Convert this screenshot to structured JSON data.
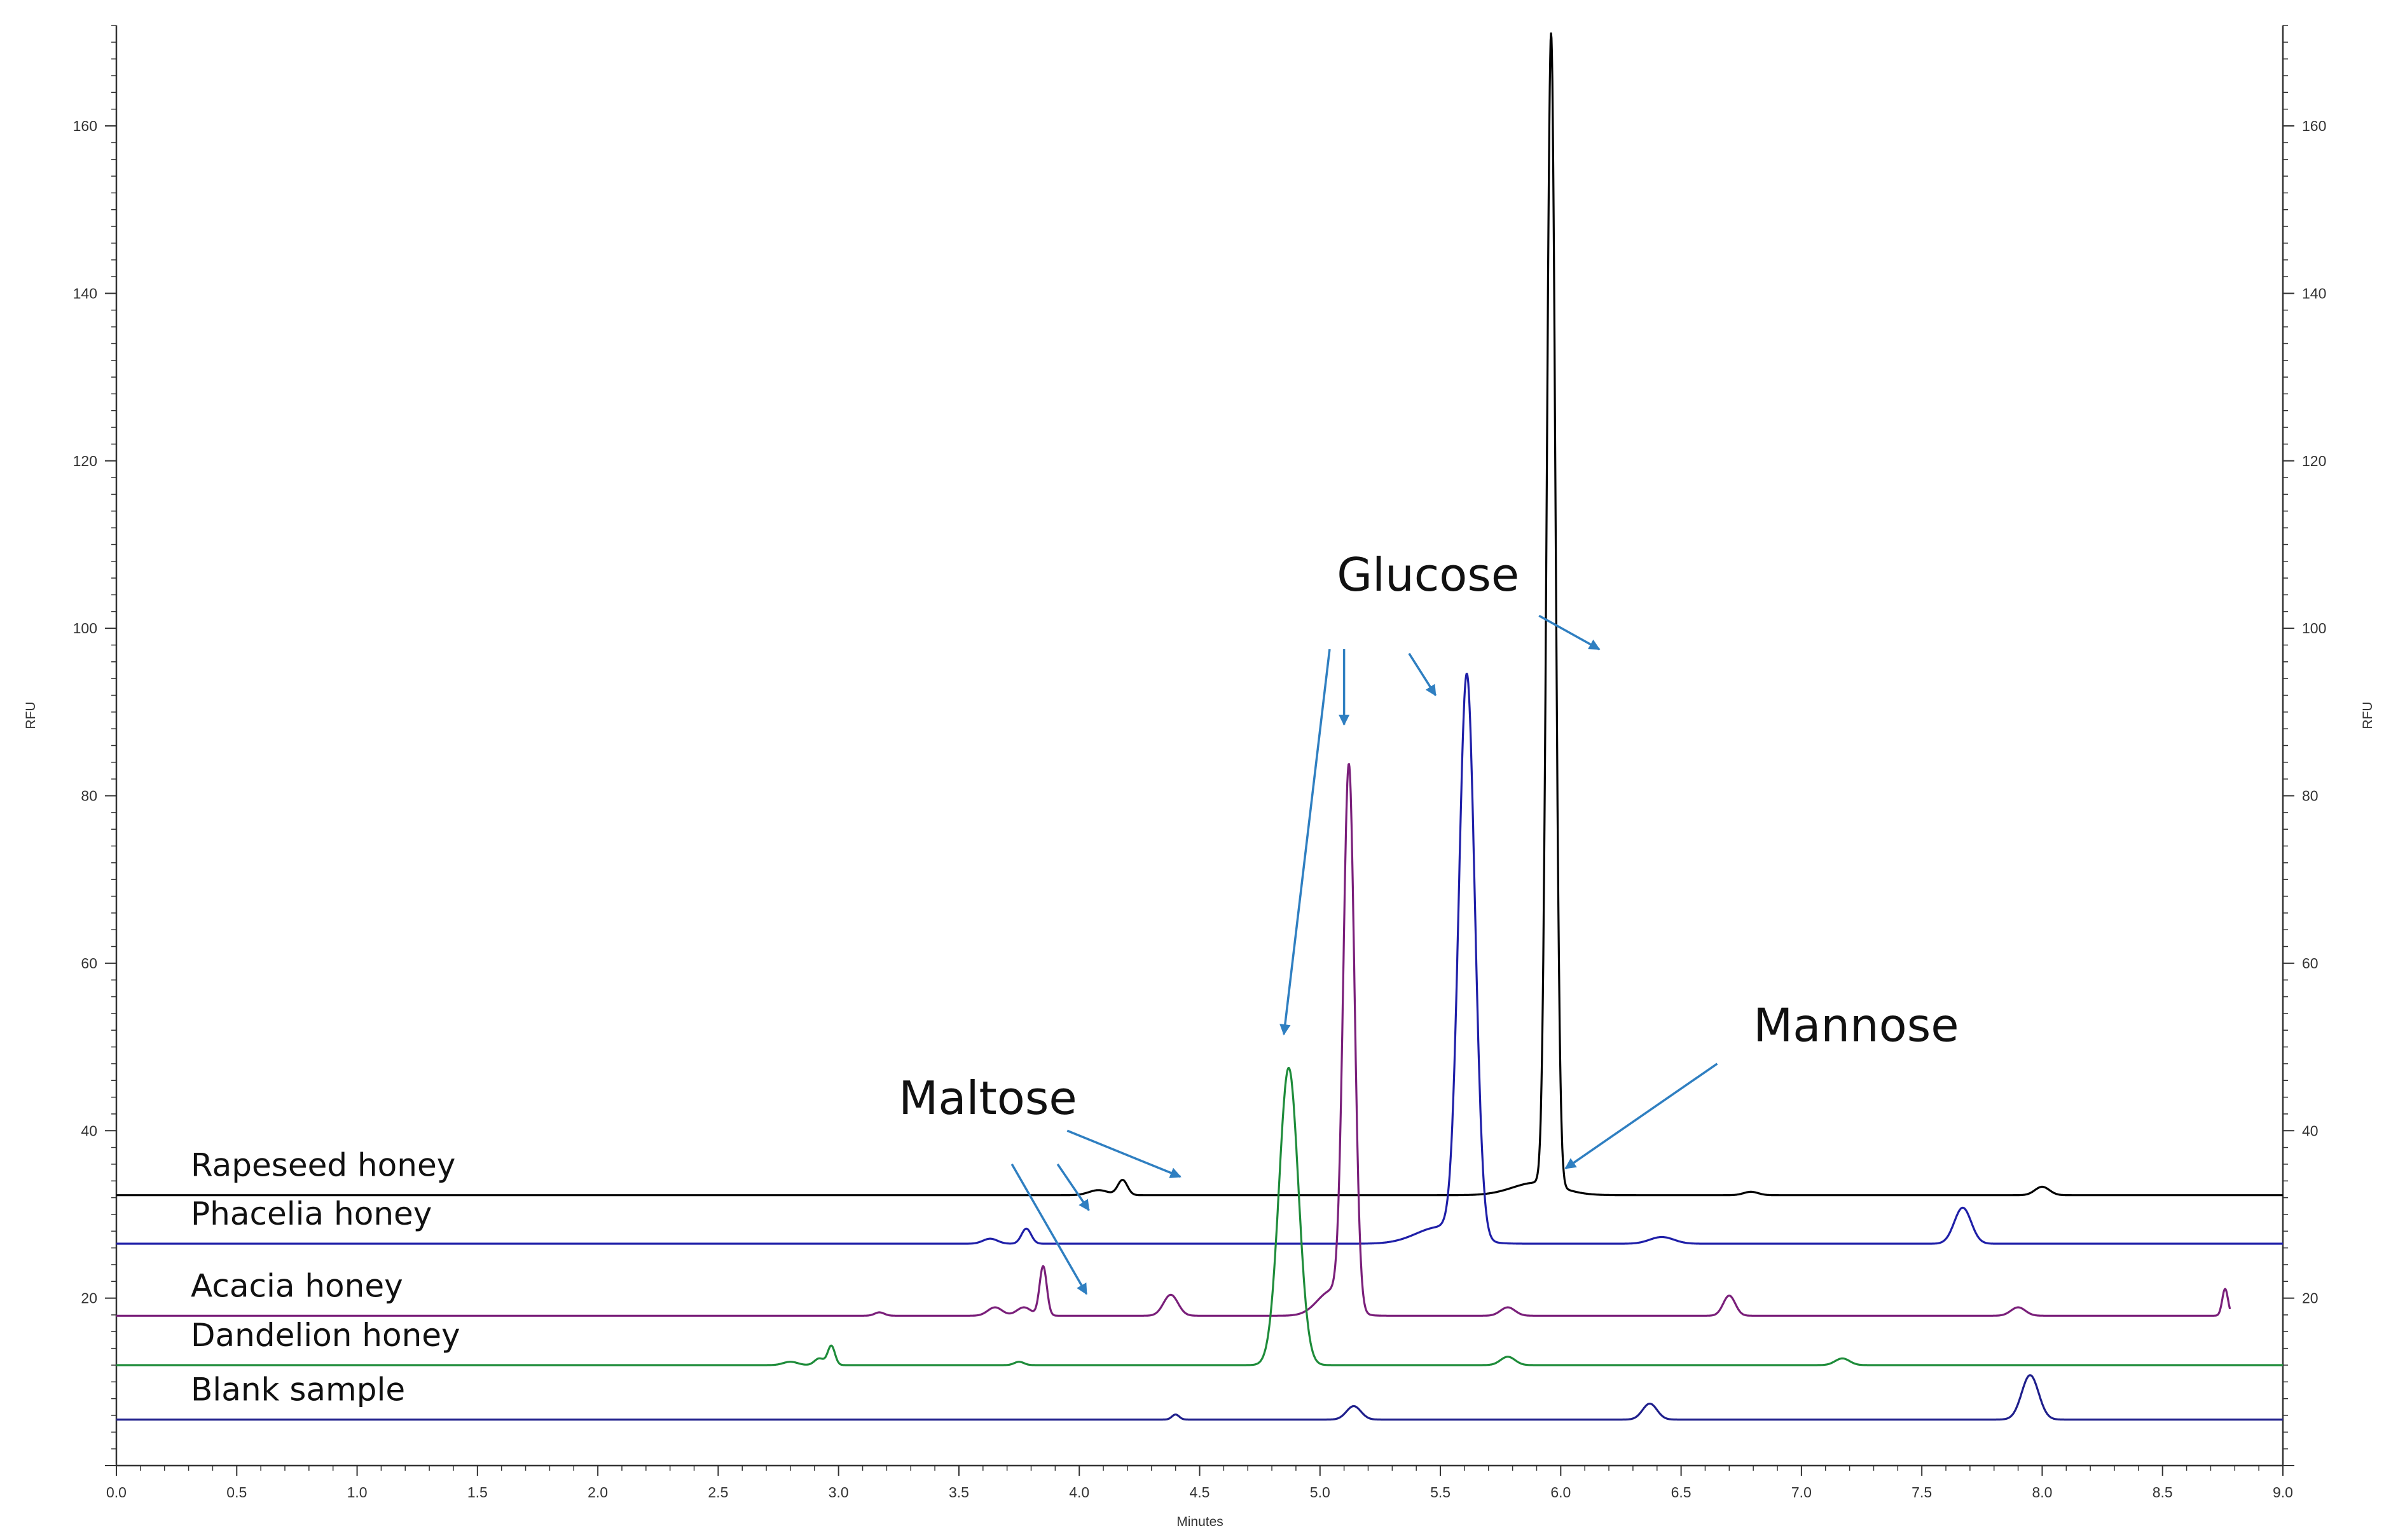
{
  "chart_data": {
    "type": "line",
    "xlabel": "Minutes",
    "ylabel": "RFU",
    "xlim": [
      0,
      9
    ],
    "ylim": [
      0,
      172
    ],
    "x_ticks": [
      "0.0",
      "0.5",
      "1.0",
      "1.5",
      "2.0",
      "2.5",
      "3.0",
      "3.5",
      "4.0",
      "4.5",
      "5.0",
      "5.5",
      "6.0",
      "6.5",
      "7.0",
      "7.5",
      "8.0",
      "8.5",
      "9.0"
    ],
    "y_ticks": [
      "20",
      "40",
      "60",
      "80",
      "100",
      "120",
      "140",
      "160"
    ],
    "x_tick_values": [
      0,
      0.5,
      1,
      1.5,
      2,
      2.5,
      3,
      3.5,
      4,
      4.5,
      5,
      5.5,
      6,
      6.5,
      7,
      7.5,
      8,
      8.5,
      9
    ],
    "y_tick_values": [
      20,
      40,
      60,
      80,
      100,
      120,
      140,
      160
    ],
    "grid": false,
    "secondary_y_axis": true,
    "series": [
      {
        "name": "Rapeseed honey",
        "color": "#000000",
        "baseline": 32.3,
        "x_end": 9.0,
        "peaks": [
          {
            "x": 4.18,
            "height": 1.8,
            "width": 0.02
          },
          {
            "x": 4.08,
            "height": 0.6,
            "width": 0.04
          },
          {
            "x": 5.9,
            "height": 1.5,
            "width": 0.1
          },
          {
            "x": 5.96,
            "height": 137.5,
            "width": 0.018
          },
          {
            "x": 6.79,
            "height": 0.4,
            "width": 0.03
          },
          {
            "x": 8.0,
            "height": 1.0,
            "width": 0.03
          }
        ]
      },
      {
        "name": "Phacelia honey",
        "color": "#1f1fa8",
        "baseline": 26.5,
        "x_end": 9.0,
        "peaks": [
          {
            "x": 3.63,
            "height": 0.6,
            "width": 0.03
          },
          {
            "x": 3.78,
            "height": 1.8,
            "width": 0.02
          },
          {
            "x": 5.61,
            "height": 67.0,
            "width": 0.033
          },
          {
            "x": 5.5,
            "height": 2.0,
            "width": 0.1
          },
          {
            "x": 6.42,
            "height": 0.8,
            "width": 0.05
          },
          {
            "x": 7.67,
            "height": 4.3,
            "width": 0.035
          }
        ]
      },
      {
        "name": "Acacia honey",
        "color": "#7a1f7a",
        "baseline": 17.9,
        "x_end": 8.78,
        "peaks": [
          {
            "x": 3.17,
            "height": 0.4,
            "width": 0.02
          },
          {
            "x": 3.65,
            "height": 1.0,
            "width": 0.03
          },
          {
            "x": 3.77,
            "height": 1.0,
            "width": 0.03
          },
          {
            "x": 3.85,
            "height": 5.9,
            "width": 0.015
          },
          {
            "x": 4.38,
            "height": 2.5,
            "width": 0.03
          },
          {
            "x": 5.12,
            "height": 64.4,
            "width": 0.023
          },
          {
            "x": 5.05,
            "height": 3.0,
            "width": 0.06
          },
          {
            "x": 5.78,
            "height": 1.0,
            "width": 0.03
          },
          {
            "x": 6.7,
            "height": 2.4,
            "width": 0.025
          },
          {
            "x": 7.9,
            "height": 1.0,
            "width": 0.03
          },
          {
            "x": 8.76,
            "height": 3.2,
            "width": 0.012
          }
        ]
      },
      {
        "name": "Dandelion honey",
        "color": "#1e8c3a",
        "baseline": 12.0,
        "x_end": 9.0,
        "peaks": [
          {
            "x": 2.8,
            "height": 0.4,
            "width": 0.03
          },
          {
            "x": 2.92,
            "height": 0.8,
            "width": 0.02
          },
          {
            "x": 2.97,
            "height": 2.3,
            "width": 0.015
          },
          {
            "x": 3.75,
            "height": 0.4,
            "width": 0.02
          },
          {
            "x": 4.87,
            "height": 35.5,
            "width": 0.04
          },
          {
            "x": 5.78,
            "height": 1.0,
            "width": 0.03
          },
          {
            "x": 7.17,
            "height": 0.8,
            "width": 0.03
          }
        ]
      },
      {
        "name": "Blank sample",
        "color": "#1f1f8c",
        "baseline": 5.5,
        "x_end": 9.0,
        "peaks": [
          {
            "x": 4.4,
            "height": 0.6,
            "width": 0.015
          },
          {
            "x": 5.14,
            "height": 1.6,
            "width": 0.03
          },
          {
            "x": 6.37,
            "height": 1.9,
            "width": 0.03
          },
          {
            "x": 7.95,
            "height": 5.3,
            "width": 0.035
          }
        ]
      }
    ],
    "annotations": [
      {
        "text": "Glucose",
        "label_at": [
          5.07,
          104.5
        ],
        "arrows": [
          {
            "from": [
              5.91,
              101.5
            ],
            "to": [
              6.16,
              97.5
            ]
          },
          {
            "from": [
              5.37,
              97.0
            ],
            "to": [
              5.48,
              92.0
            ]
          },
          {
            "from": [
              5.1,
              97.5
            ],
            "to": [
              5.1,
              88.5
            ]
          },
          {
            "from": [
              5.04,
              97.5
            ],
            "to": [
              4.85,
              51.5
            ]
          }
        ]
      },
      {
        "text": "Mannose",
        "label_at": [
          6.8,
          50.7
        ],
        "arrows": [
          {
            "from": [
              6.65,
              48.0
            ],
            "to": [
              6.02,
              35.5
            ]
          }
        ]
      },
      {
        "text": "Maltose",
        "label_at": [
          3.25,
          42.0
        ],
        "arrows": [
          {
            "from": [
              3.95,
              40.0
            ],
            "to": [
              4.42,
              34.5
            ]
          },
          {
            "from": [
              3.91,
              36.0
            ],
            "to": [
              4.04,
              30.5
            ]
          },
          {
            "from": [
              3.72,
              36.0
            ],
            "to": [
              4.03,
              20.5
            ]
          }
        ]
      }
    ]
  }
}
